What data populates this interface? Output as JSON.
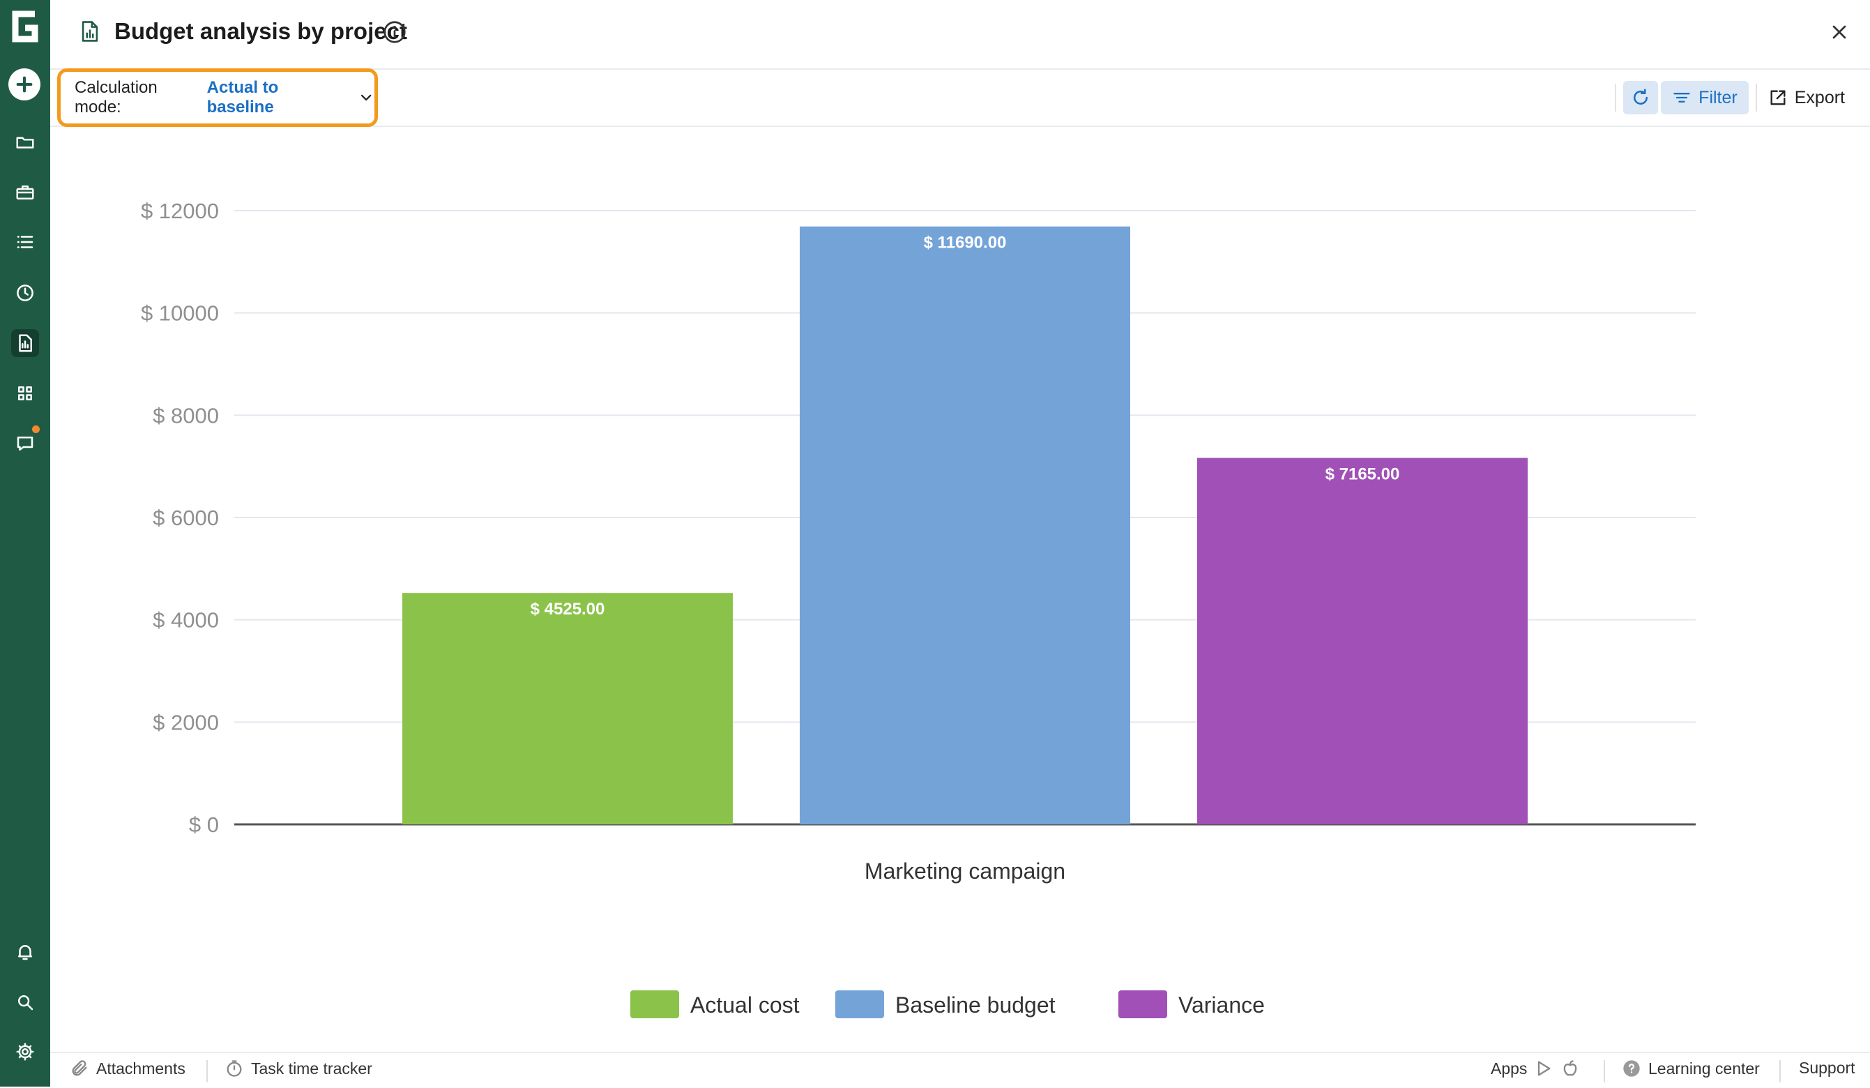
{
  "header": {
    "title": "Budget analysis by project"
  },
  "toolbar": {
    "calc_mode_label": "Calculation mode:",
    "calc_mode_value": "Actual to baseline",
    "filter_label": "Filter",
    "export_label": "Export"
  },
  "sidebar": {
    "items": [
      "logo-icon",
      "add-icon",
      "folder-icon",
      "briefcase-icon",
      "list-icon",
      "clock-icon",
      "report-icon",
      "apps-grid-icon",
      "chat-icon",
      "bell-icon",
      "search-icon",
      "gear-icon"
    ],
    "active": "report-icon"
  },
  "chart_data": {
    "type": "bar",
    "title": "",
    "categories": [
      "Marketing campaign"
    ],
    "series": [
      {
        "name": "Actual cost",
        "values": [
          4525.0
        ],
        "label": "$ 4525.00",
        "color": "#8bc34a"
      },
      {
        "name": "Baseline budget",
        "values": [
          11690.0
        ],
        "label": "$ 11690.00",
        "color": "#74a3d8"
      },
      {
        "name": "Variance",
        "values": [
          7165.0
        ],
        "label": "$ 7165.00",
        "color": "#a050b6"
      }
    ],
    "yticks": [
      "$ 0",
      "$ 2000",
      "$ 4000",
      "$ 6000",
      "$ 8000",
      "$ 10000",
      "$ 12000"
    ],
    "ylim": [
      0,
      12000
    ],
    "grid": true,
    "legend": "bottom-center"
  },
  "footer": {
    "attachments": "Attachments",
    "time_tracker": "Task time tracker",
    "apps": "Apps",
    "learning_center": "Learning center",
    "support": "Support"
  }
}
